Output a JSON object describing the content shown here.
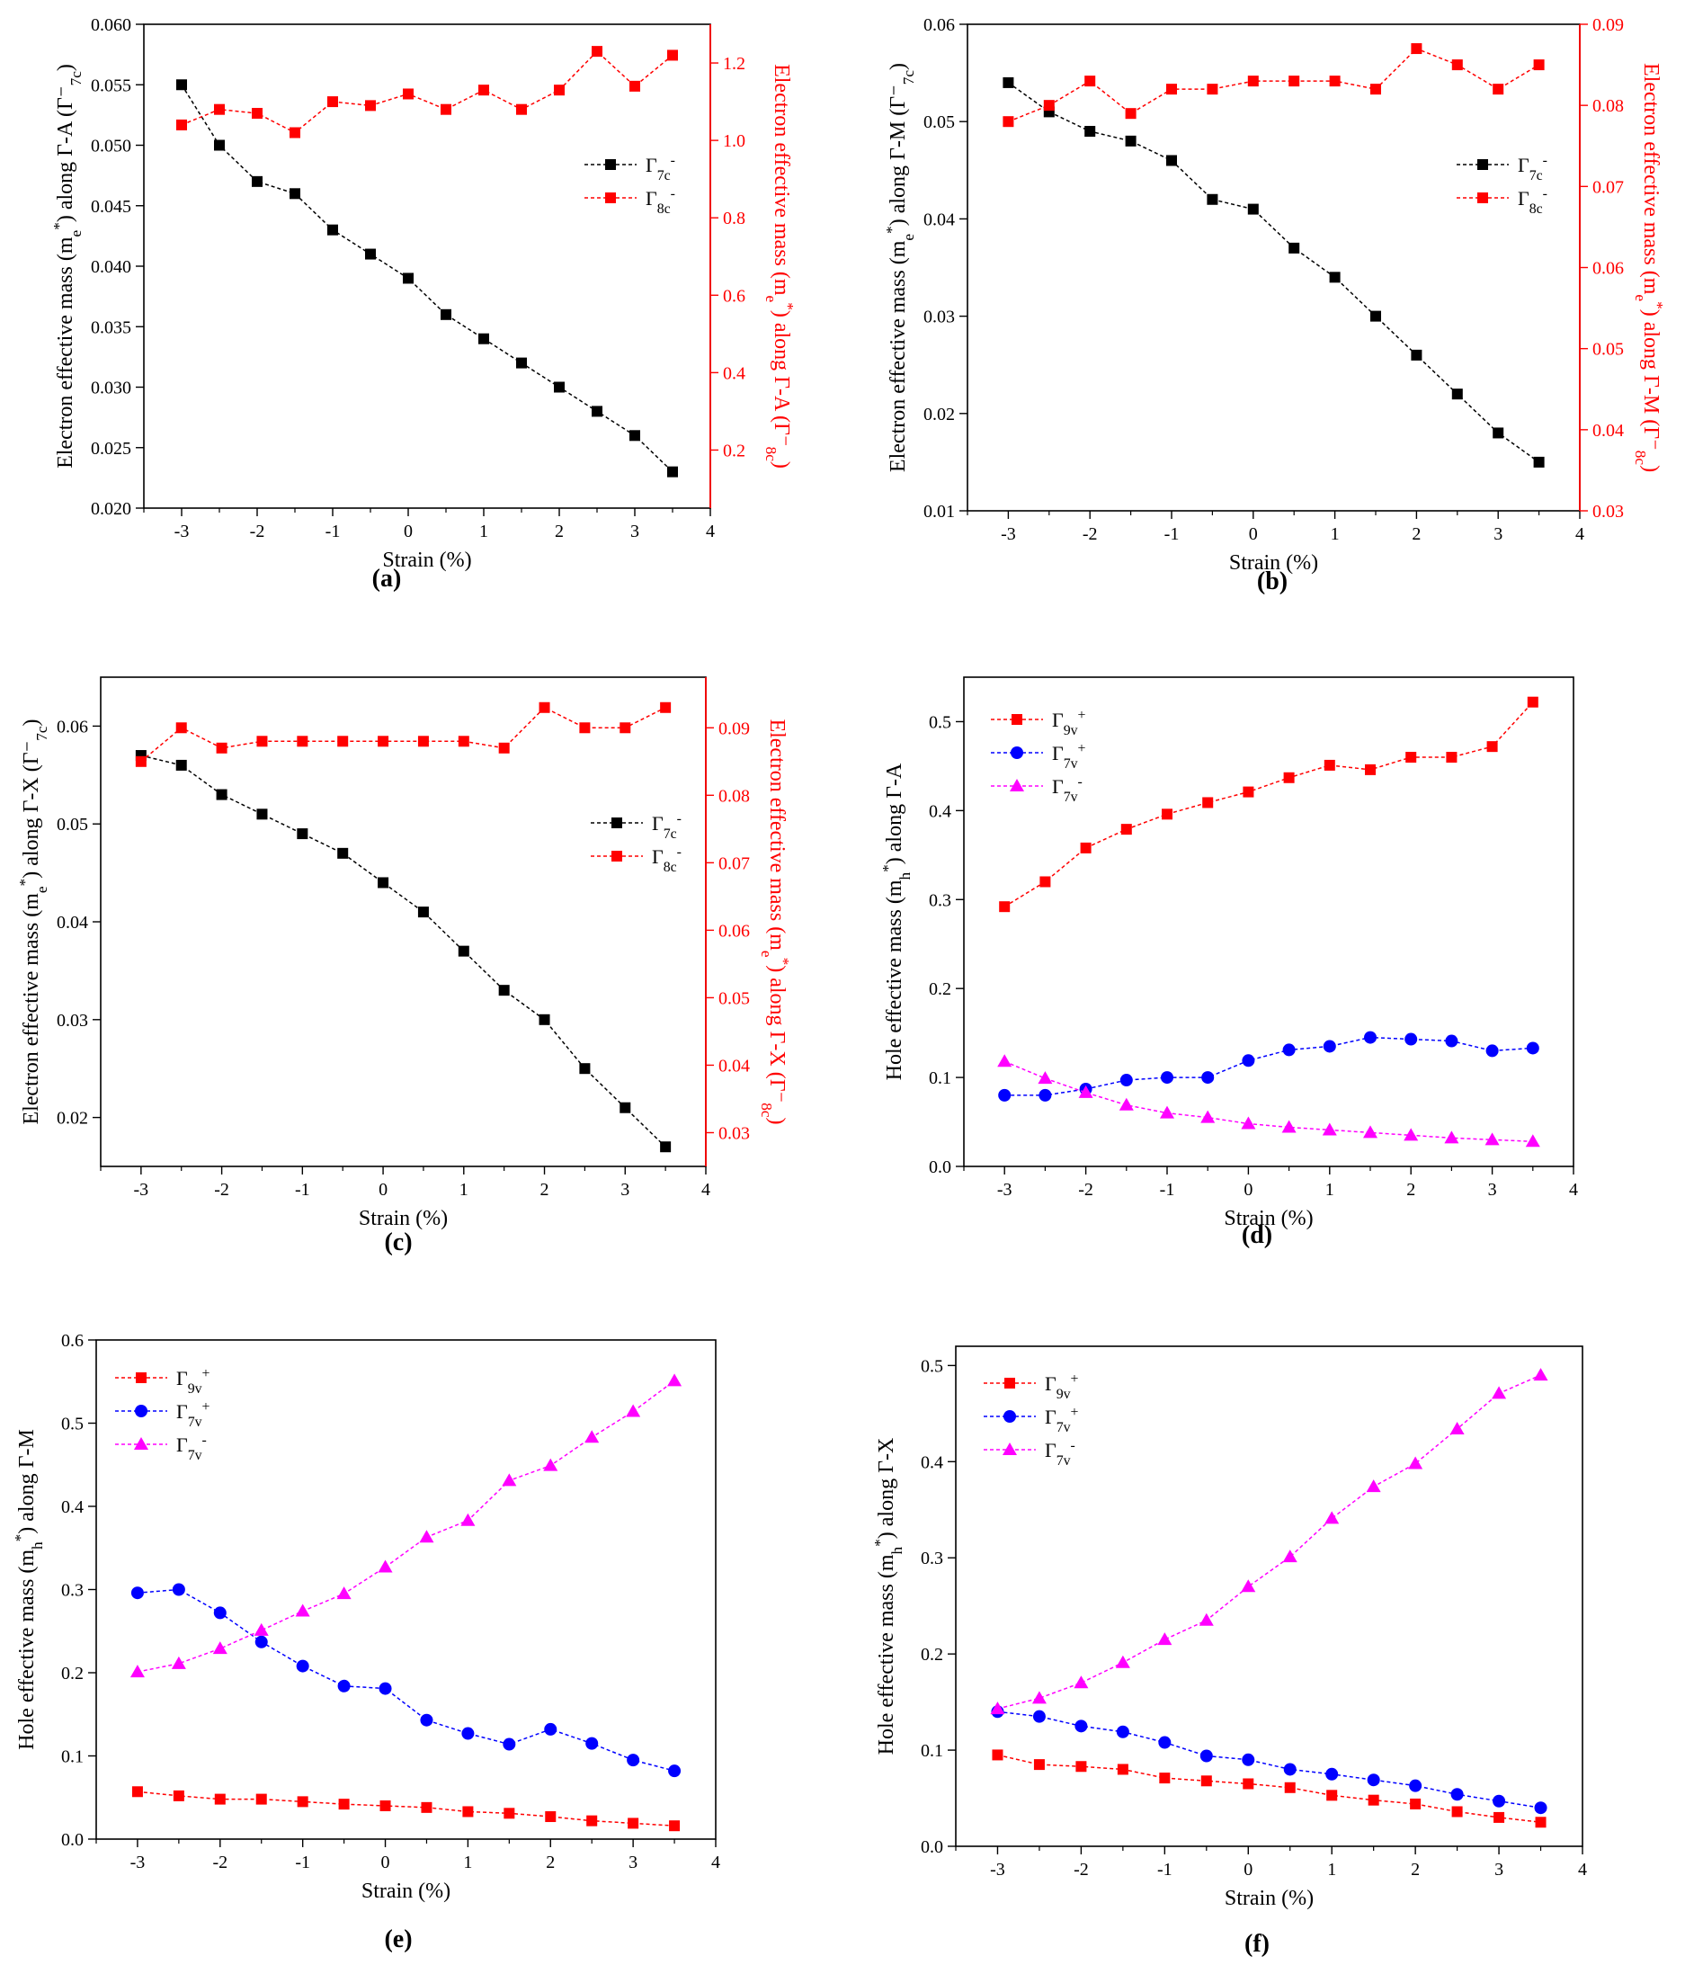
{
  "xlabel": "Strain (%)",
  "chart_data": [
    {
      "panel": "(a)",
      "type": "line",
      "x": [
        -3,
        -2.5,
        -2,
        -1.5,
        -1,
        -0.5,
        0,
        0.5,
        1,
        1.5,
        2,
        2.5,
        3,
        3.5
      ],
      "xlim": [
        -3.5,
        4
      ],
      "xticks": [
        -3,
        -2,
        -1,
        0,
        1,
        2,
        3,
        4
      ],
      "ylabel": "Electron effective mass (m_e^*) along Γ-A  (Γ⁻_7c)",
      "ylim": [
        0.02,
        0.06
      ],
      "yticks": [
        "0.020",
        "0.025",
        "0.030",
        "0.035",
        "0.040",
        "0.045",
        "0.050",
        "0.055",
        "0.060"
      ],
      "y2label": "Electron effective mass (m_e^*) along Γ-A  (Γ⁻_8c)",
      "y2lim": [
        0.05,
        1.3
      ],
      "y2ticks": [
        "0.2",
        "0.4",
        "0.6",
        "0.8",
        "1.0",
        "1.2"
      ],
      "legend": "right",
      "series": [
        {
          "name": "Γ7c-",
          "axis": "left",
          "color": "#000000",
          "marker": "square",
          "values": [
            0.055,
            0.05,
            0.047,
            0.046,
            0.043,
            0.041,
            0.039,
            0.036,
            0.034,
            0.032,
            0.03,
            0.028,
            0.026,
            0.023
          ]
        },
        {
          "name": "Γ8c-",
          "axis": "right",
          "color": "#ff0000",
          "marker": "square",
          "values": [
            1.04,
            1.08,
            1.07,
            1.02,
            1.1,
            1.09,
            1.12,
            1.08,
            1.13,
            1.08,
            1.13,
            1.23,
            1.14,
            1.22
          ]
        }
      ]
    },
    {
      "panel": "(b)",
      "type": "line",
      "x": [
        -3,
        -2.5,
        -2,
        -1.5,
        -1,
        -0.5,
        0,
        0.5,
        1,
        1.5,
        2,
        2.5,
        3,
        3.5
      ],
      "xlim": [
        -3.5,
        4
      ],
      "xticks": [
        -3,
        -2,
        -1,
        0,
        1,
        2,
        3,
        4
      ],
      "ylabel": "Electron effective mass (m_e^*) along Γ-M  (Γ⁻_7c)",
      "ylim": [
        0.01,
        0.06
      ],
      "yticks": [
        "0.01",
        "0.02",
        "0.03",
        "0.04",
        "0.05",
        "0.06"
      ],
      "y2label": "Electron effective mass (m_e^*) along Γ-M  (Γ⁻_8c)",
      "y2lim": [
        0.03,
        0.09
      ],
      "y2ticks": [
        "0.03",
        "0.04",
        "0.05",
        "0.06",
        "0.07",
        "0.08",
        "0.09"
      ],
      "legend": "right",
      "series": [
        {
          "name": "Γ7c-",
          "axis": "left",
          "color": "#000000",
          "marker": "square",
          "values": [
            0.054,
            0.051,
            0.049,
            0.048,
            0.046,
            0.042,
            0.041,
            0.037,
            0.034,
            0.03,
            0.026,
            0.022,
            0.018,
            0.015
          ]
        },
        {
          "name": "Γ8c-",
          "axis": "right",
          "color": "#ff0000",
          "marker": "square",
          "values": [
            0.078,
            0.08,
            0.083,
            0.079,
            0.082,
            0.082,
            0.083,
            0.083,
            0.083,
            0.082,
            0.087,
            0.085,
            0.082,
            0.085
          ]
        }
      ]
    },
    {
      "panel": "(c)",
      "type": "line",
      "x": [
        -3,
        -2.5,
        -2,
        -1.5,
        -1,
        -0.5,
        0,
        0.5,
        1,
        1.5,
        2,
        2.5,
        3,
        3.5
      ],
      "xlim": [
        -3.5,
        4
      ],
      "xticks": [
        -3,
        -2,
        -1,
        0,
        1,
        2,
        3,
        4
      ],
      "ylabel": "Electron effective mass (m_e^*) along Γ-X  (Γ⁻_7c)",
      "ylim": [
        0.015,
        0.065
      ],
      "yticks": [
        "0.02",
        "0.03",
        "0.04",
        "0.05",
        "0.06"
      ],
      "y2label": "Electron effective mass (m_e^*) along Γ-X  (Γ⁻_8c)",
      "y2lim": [
        0.025,
        0.0975
      ],
      "y2ticks": [
        "0.03",
        "0.04",
        "0.05",
        "0.06",
        "0.07",
        "0.08",
        "0.09"
      ],
      "legend": "right",
      "series": [
        {
          "name": "Γ7c-",
          "axis": "left",
          "color": "#000000",
          "marker": "square",
          "values": [
            0.057,
            0.056,
            0.053,
            0.051,
            0.049,
            0.047,
            0.044,
            0.041,
            0.037,
            0.033,
            0.03,
            0.025,
            0.021,
            0.017
          ]
        },
        {
          "name": "Γ8c-",
          "axis": "right",
          "color": "#ff0000",
          "marker": "square",
          "values": [
            0.085,
            0.09,
            0.087,
            0.088,
            0.088,
            0.088,
            0.088,
            0.088,
            0.088,
            0.087,
            0.093,
            0.09,
            0.09,
            0.093
          ]
        }
      ]
    },
    {
      "panel": "(d)",
      "type": "line",
      "x": [
        -3,
        -2.5,
        -2,
        -1.5,
        -1,
        -0.5,
        0,
        0.5,
        1,
        1.5,
        2,
        2.5,
        3,
        3.5
      ],
      "xlim": [
        -3.5,
        4
      ],
      "xticks": [
        -3,
        -2,
        -1,
        0,
        1,
        2,
        3,
        4
      ],
      "ylabel": "Hole effective mass (m_h^*) along Γ-A",
      "ylim": [
        0,
        0.55
      ],
      "yticks": [
        "0.0",
        "0.1",
        "0.2",
        "0.3",
        "0.4",
        "0.5"
      ],
      "legend": "top-left",
      "series": [
        {
          "name": "Γ9v+",
          "color": "#ff0000",
          "marker": "square",
          "values": [
            0.292,
            0.32,
            0.358,
            0.379,
            0.396,
            0.409,
            0.421,
            0.437,
            0.451,
            0.446,
            0.46,
            0.46,
            0.472,
            0.522
          ]
        },
        {
          "name": "Γ7v+",
          "color": "#0000ff",
          "marker": "circle",
          "values": [
            0.08,
            0.08,
            0.087,
            0.097,
            0.1,
            0.1,
            0.119,
            0.131,
            0.135,
            0.145,
            0.143,
            0.141,
            0.13,
            0.133
          ]
        },
        {
          "name": "Γ7v-",
          "color": "#ff00ff",
          "marker": "triangle",
          "values": [
            0.118,
            0.099,
            0.083,
            0.069,
            0.06,
            0.055,
            0.048,
            0.044,
            0.041,
            0.038,
            0.035,
            0.032,
            0.03,
            0.028
          ]
        }
      ]
    },
    {
      "panel": "(e)",
      "type": "line",
      "x": [
        -3,
        -2.5,
        -2,
        -1.5,
        -1,
        -0.5,
        0,
        0.5,
        1,
        1.5,
        2,
        2.5,
        3,
        3.5
      ],
      "xlim": [
        -3.5,
        4
      ],
      "xticks": [
        -3,
        -2,
        -1,
        0,
        1,
        2,
        3,
        4
      ],
      "ylabel": "Hole effective mass (m_h^*) along Γ-M",
      "ylim": [
        0,
        0.6
      ],
      "yticks": [
        "0.0",
        "0.1",
        "0.2",
        "0.3",
        "0.4",
        "0.5",
        "0.6"
      ],
      "legend": "top-left",
      "series": [
        {
          "name": "Γ9v+",
          "color": "#ff0000",
          "marker": "square",
          "values": [
            0.057,
            0.052,
            0.048,
            0.048,
            0.045,
            0.042,
            0.04,
            0.038,
            0.033,
            0.031,
            0.027,
            0.022,
            0.019,
            0.016
          ]
        },
        {
          "name": "Γ7v+",
          "color": "#0000ff",
          "marker": "circle",
          "values": [
            0.296,
            0.3,
            0.272,
            0.237,
            0.208,
            0.184,
            0.181,
            0.143,
            0.127,
            0.114,
            0.132,
            0.115,
            0.095,
            0.082
          ]
        },
        {
          "name": "Γ7v-",
          "color": "#ff00ff",
          "marker": "triangle",
          "values": [
            0.201,
            0.211,
            0.229,
            0.251,
            0.274,
            0.295,
            0.327,
            0.363,
            0.383,
            0.431,
            0.449,
            0.483,
            0.514,
            0.551
          ]
        }
      ]
    },
    {
      "panel": "(f)",
      "type": "line",
      "x": [
        -3,
        -2.5,
        -2,
        -1.5,
        -1,
        -0.5,
        0,
        0.5,
        1,
        1.5,
        2,
        2.5,
        3,
        3.5
      ],
      "xlim": [
        -3.5,
        4
      ],
      "xticks": [
        -3,
        -2,
        -1,
        0,
        1,
        2,
        3,
        4
      ],
      "ylabel": "Hole effective mass (m_h^*) along Γ-X",
      "ylim": [
        0,
        0.52
      ],
      "yticks": [
        "0.0",
        "0.1",
        "0.2",
        "0.3",
        "0.4",
        "0.5"
      ],
      "legend": "top-left",
      "series": [
        {
          "name": "Γ9v+",
          "color": "#ff0000",
          "marker": "square",
          "values": [
            0.095,
            0.085,
            0.083,
            0.08,
            0.071,
            0.068,
            0.065,
            0.061,
            0.053,
            0.048,
            0.044,
            0.036,
            0.03,
            0.025
          ]
        },
        {
          "name": "Γ7v+",
          "color": "#0000ff",
          "marker": "circle",
          "values": [
            0.14,
            0.135,
            0.125,
            0.119,
            0.108,
            0.094,
            0.09,
            0.08,
            0.075,
            0.069,
            0.063,
            0.054,
            0.047,
            0.04
          ]
        },
        {
          "name": "Γ7v-",
          "color": "#ff00ff",
          "marker": "triangle",
          "values": [
            0.143,
            0.154,
            0.17,
            0.191,
            0.215,
            0.235,
            0.27,
            0.301,
            0.341,
            0.374,
            0.398,
            0.434,
            0.471,
            0.49
          ]
        }
      ]
    }
  ]
}
